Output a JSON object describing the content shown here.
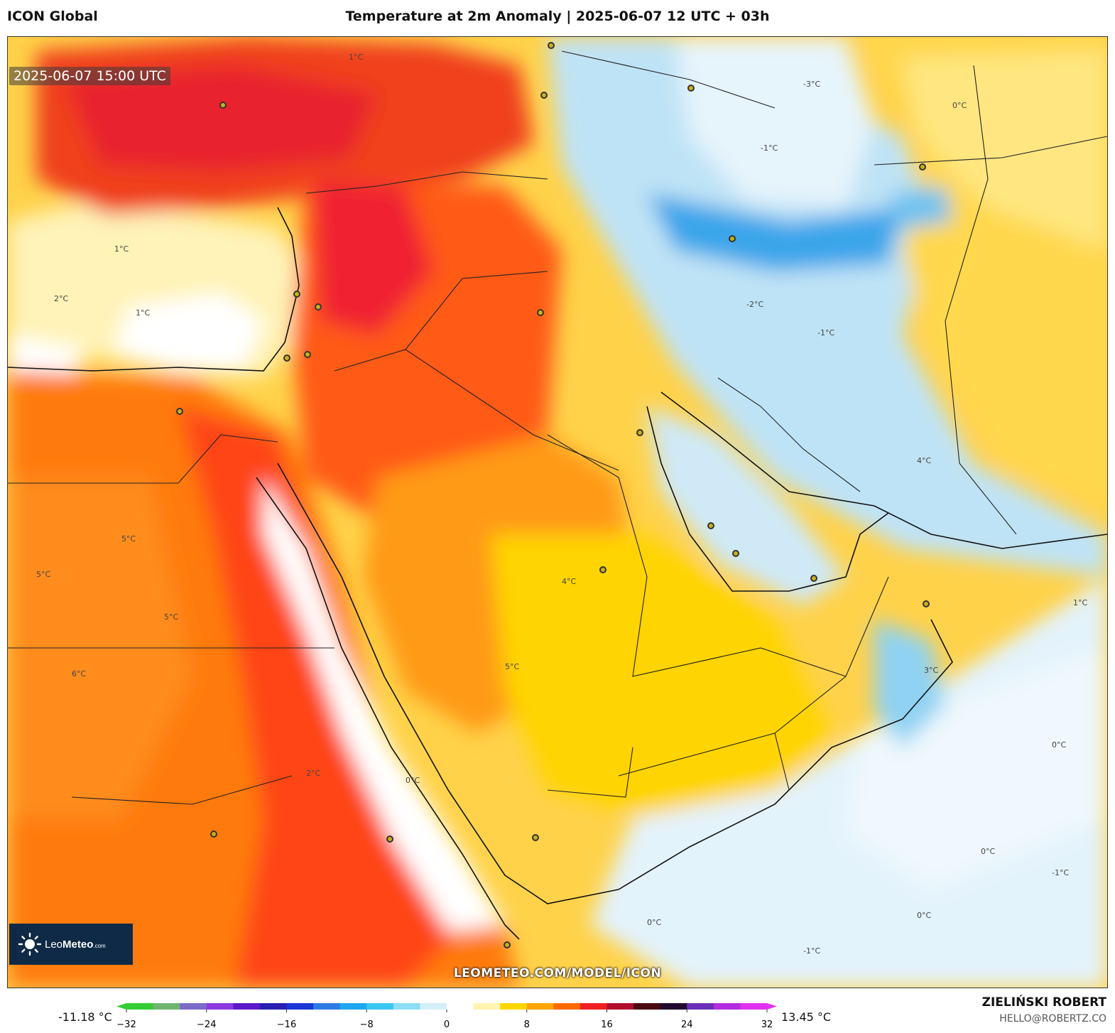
{
  "header": {
    "model": "ICON Global",
    "title": "Temperature at 2m Anomaly | 2025-06-07 12 UTC + 03h"
  },
  "map": {
    "valid_time": "2025-06-07 15:00 UTC",
    "watermark": "LEOMETEO.COM/MODEL/ICON",
    "logo": {
      "prefix": "Leo",
      "suffix": "Meteo",
      "tld": ".com"
    },
    "isotherm_labels": [
      "1°C",
      "1°C",
      "2°C",
      "1°C",
      "5°C",
      "5°C",
      "5°C",
      "6°C",
      "4°C",
      "5°C",
      "3°C",
      "0°C",
      "0°C",
      "-1°C",
      "-2°C",
      "-1°C",
      "-3°C",
      "-1°C",
      "0°C",
      "0°C",
      "-1°C",
      "0°C",
      "2°C",
      "4°C",
      "1°C",
      "0°C"
    ]
  },
  "legend": {
    "min_label": "-11.18 °C",
    "max_label": "13.45 °C",
    "ticks": [
      "−32",
      "−24",
      "−16",
      "−8",
      "0",
      "8",
      "16",
      "24",
      "32"
    ],
    "colors": [
      "#33cc33",
      "#6fb56f",
      "#7c6ac9",
      "#8c3ae0",
      "#5b19c9",
      "#2a1fb0",
      "#1a36d6",
      "#2c7be5",
      "#1ea7ee",
      "#39c6f2",
      "#8fdcf6",
      "#d5effa",
      "#ffffff",
      "#fff4b0",
      "#ffd700",
      "#ffa400",
      "#ff6a00",
      "#f02020",
      "#b10e2d",
      "#4b0a12",
      "#220a30",
      "#6a2fb6",
      "#b22ce0",
      "#e030f0"
    ]
  },
  "credits": {
    "author": "ZIELIŃSKI ROBERT",
    "email": "HELLO@ROBERTZ.CO"
  }
}
